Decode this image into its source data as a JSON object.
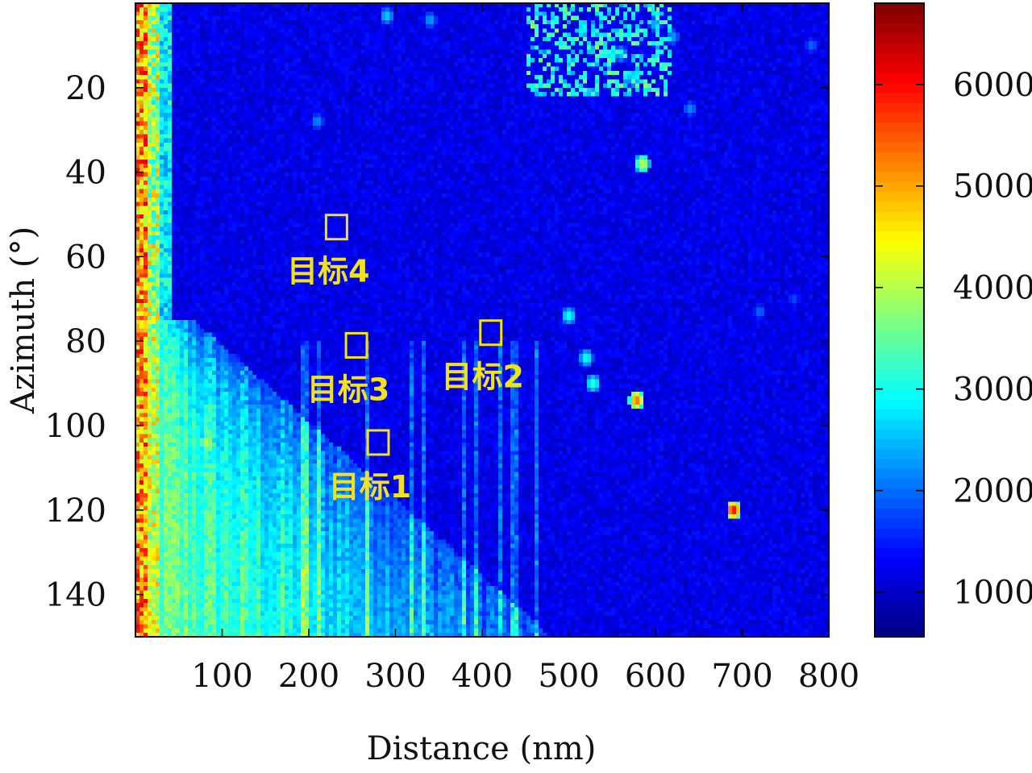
{
  "chart_data": {
    "type": "heatmap",
    "title": "",
    "xlabel": "Distance (nm)",
    "ylabel": "Azimuth (°)",
    "xlim": [
      0,
      800
    ],
    "ylim": [
      0,
      150
    ],
    "x_ticks": [
      100,
      200,
      300,
      400,
      500,
      600,
      700,
      800
    ],
    "y_ticks": [
      20,
      40,
      60,
      80,
      100,
      120,
      140
    ],
    "colorbar": {
      "colormap": "jet",
      "range": [
        560,
        6800
      ],
      "ticks": [
        1000,
        2000,
        3000,
        4000,
        5000,
        6000
      ]
    },
    "annotations": [
      {
        "label": "目标1",
        "x": 280,
        "y": 104
      },
      {
        "label": "目标2",
        "x": 410,
        "y": 78
      },
      {
        "label": "目标3",
        "x": 255,
        "y": 81
      },
      {
        "label": "目标4",
        "x": 232,
        "y": 53
      }
    ],
    "description_note": "Background intensity ~900-1400; bright near-range band (x<40) ~3000-6000; stronger returns below azimuth ~75 for x<350"
  }
}
